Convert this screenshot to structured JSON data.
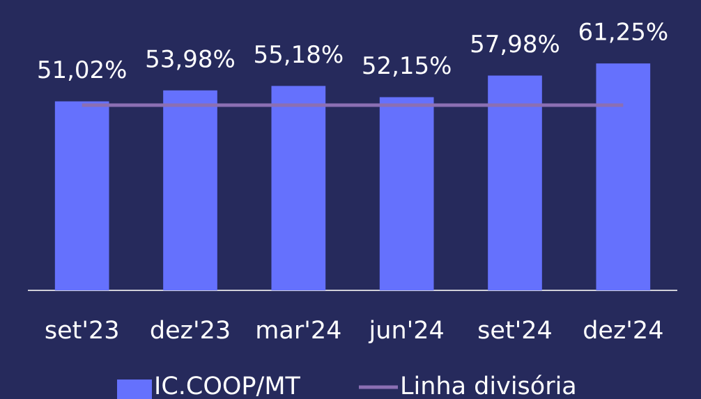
{
  "chart_data": {
    "type": "bar",
    "categories": [
      "set'23",
      "dez'23",
      "mar'24",
      "jun'24",
      "set'24",
      "dez'24"
    ],
    "series": [
      {
        "name": "IC.COOP/MT",
        "color": "#6571fd",
        "values": [
          51.02,
          53.98,
          55.18,
          52.15,
          57.98,
          61.25
        ],
        "value_labels": [
          "51,02%",
          "53,98%",
          "55,18%",
          "52,15%",
          "57,98%",
          "61,25%"
        ]
      },
      {
        "name": "Linha divisória",
        "type": "line",
        "color": "#8b6fb3",
        "values": [
          50,
          50,
          50,
          50,
          50,
          50
        ]
      }
    ],
    "ylim": [
      0,
      78
    ]
  }
}
